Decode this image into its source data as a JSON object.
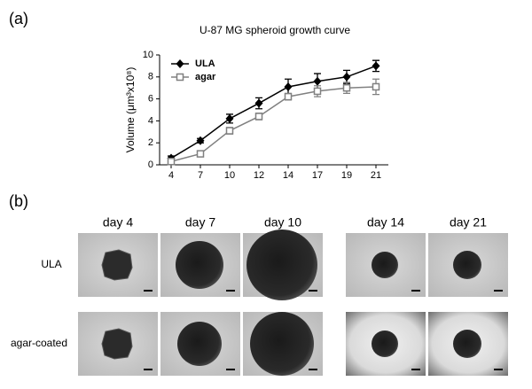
{
  "panel_labels": [
    "(a)",
    "(b)"
  ],
  "chart_data": {
    "type": "line",
    "title": "U-87 MG spheroid growth curve",
    "y_label": "Volume (μm³x10⁸)",
    "categories": [
      "4",
      "7",
      "10",
      "12",
      "14",
      "17",
      "19",
      "21"
    ],
    "series": [
      {
        "name": "ULA",
        "color": "#000000",
        "marker": "diamond",
        "values": [
          0.6,
          2.2,
          4.2,
          5.6,
          7.1,
          7.6,
          8.0,
          9.0
        ],
        "errors": [
          0.2,
          0.2,
          0.4,
          0.5,
          0.7,
          0.7,
          0.6,
          0.5
        ]
      },
      {
        "name": "agar",
        "color": "#808080",
        "marker": "square",
        "values": [
          0.3,
          1.0,
          3.1,
          4.4,
          6.2,
          6.7,
          7.0,
          7.1
        ],
        "errors": [
          0.1,
          0.2,
          0.3,
          0.3,
          0.3,
          0.5,
          0.5,
          0.7
        ]
      }
    ],
    "ylim": [
      0,
      10
    ],
    "yticks": [
      0,
      2,
      4,
      6,
      8,
      10
    ],
    "grid": false,
    "legend": "upper-left"
  },
  "images": {
    "columns": [
      "day 4",
      "day 7",
      "day 10",
      "day 14",
      "day 21"
    ],
    "rows": [
      "ULA",
      "agar-coated"
    ]
  }
}
